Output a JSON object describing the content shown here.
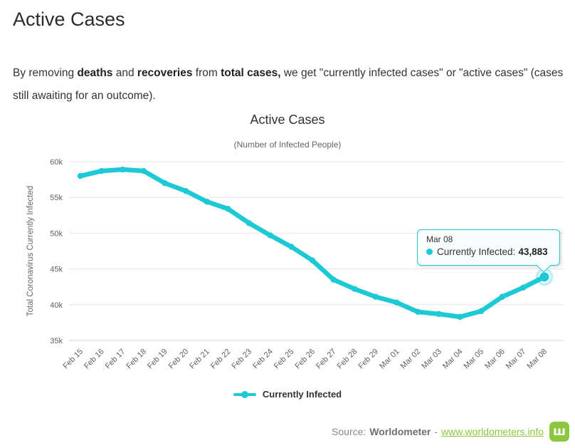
{
  "page": {
    "heading": "Active Cases",
    "intro_segments": [
      {
        "text": "By removing ",
        "bold": false
      },
      {
        "text": "deaths",
        "bold": true
      },
      {
        "text": " and ",
        "bold": false
      },
      {
        "text": "recoveries",
        "bold": true
      },
      {
        "text": " from ",
        "bold": false
      },
      {
        "text": "total cases,",
        "bold": true
      },
      {
        "text": " we get \"currently infected cases\" or \"active cases\" (cases still awaiting for an outcome).",
        "bold": false
      }
    ]
  },
  "chart_data": {
    "type": "line",
    "title": "Active Cases",
    "subtitle": "(Number of Infected People)",
    "ylabel": "Total Coronavirus Currently Infected",
    "xlabel": "",
    "categories": [
      "Feb 15",
      "Feb 16",
      "Feb 17",
      "Feb 18",
      "Feb 19",
      "Feb 20",
      "Feb 21",
      "Feb 22",
      "Feb 23",
      "Feb 24",
      "Feb 25",
      "Feb 26",
      "Feb 27",
      "Feb 28",
      "Feb 29",
      "Mar 01",
      "Mar 02",
      "Mar 03",
      "Mar 04",
      "Mar 05",
      "Mar 06",
      "Mar 07",
      "Mar 08"
    ],
    "series": [
      {
        "name": "Currently Infected",
        "color": "#1ec9d6",
        "values": [
          58000,
          58700,
          58900,
          58700,
          57000,
          55900,
          54400,
          53400,
          51400,
          49700,
          48100,
          46200,
          43500,
          42200,
          41100,
          40300,
          39000,
          38700,
          38300,
          39100,
          41100,
          42400,
          43883
        ]
      }
    ],
    "ylim": [
      35000,
      60000
    ],
    "ytick_step": 5000,
    "ytick_labels": [
      "35k",
      "40k",
      "45k",
      "50k",
      "55k",
      "60k"
    ],
    "grid": true,
    "legend_position": "bottom",
    "grid_color": "#e6e6e6",
    "axis_line_color": "#ccd6eb"
  },
  "tooltip": {
    "date": "Mar 08",
    "label": "Currently Infected:",
    "value": "43,883"
  },
  "legend": {
    "label": "Currently Infected"
  },
  "footer": {
    "source_label": "Source:",
    "source_name": "Worldometer",
    "separator": "-",
    "link_text": "www.worldometers.info",
    "link_color": "#8dc63f",
    "logo_glyph": "ш",
    "logo_color": "#8dc63f"
  }
}
